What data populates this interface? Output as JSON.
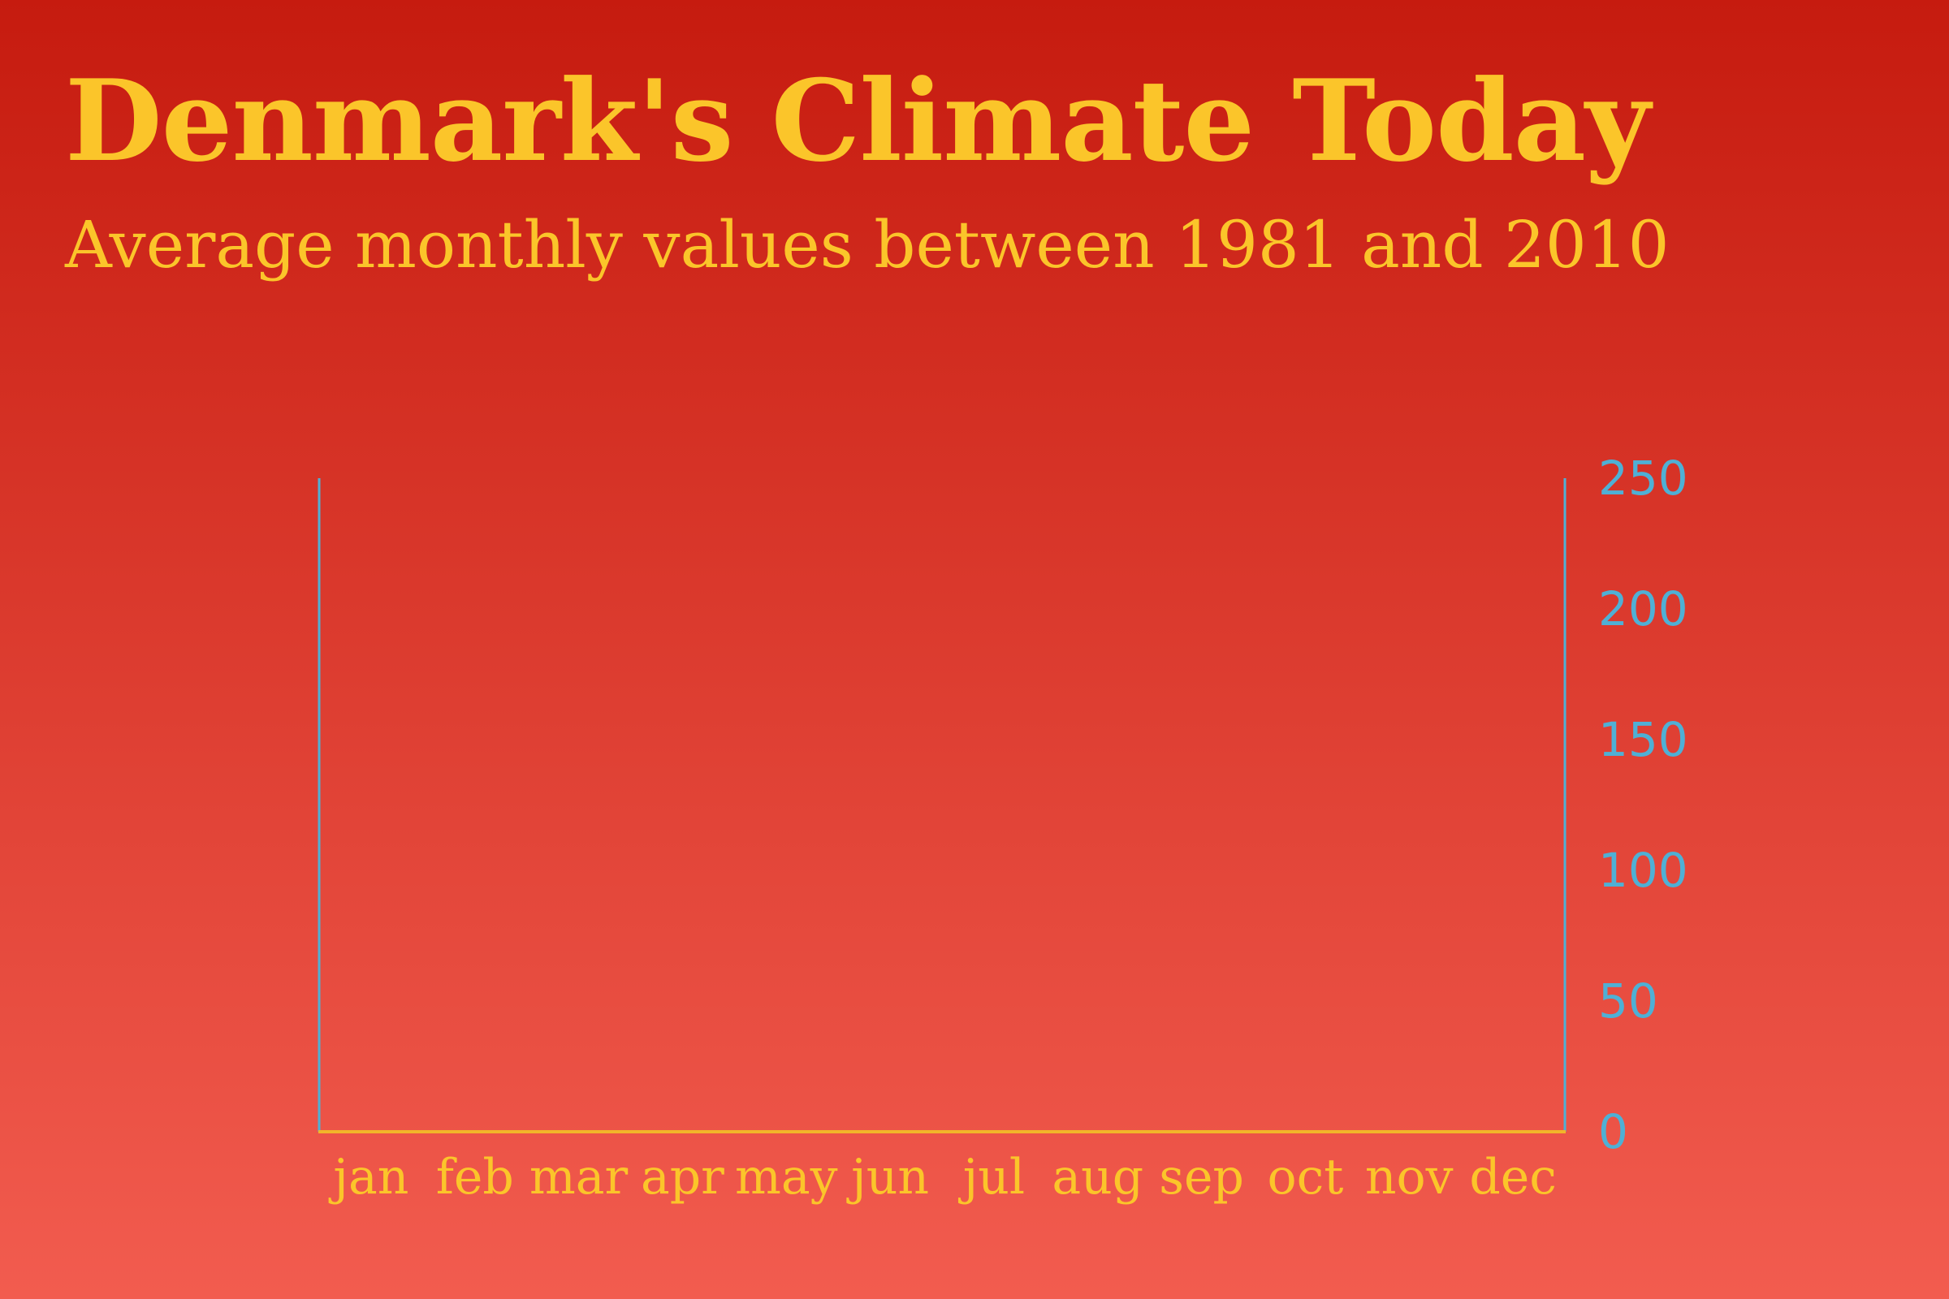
{
  "title": "Denmark's Climate Today",
  "subtitle": "Average monthly values between 1981 and 2010",
  "colors": {
    "background_top": "#c61b0f",
    "background_bottom": "#f25c4f",
    "title": "#fbc52a",
    "right_axis": "#4fb0d5",
    "baseline": "#f2b52a",
    "category_labels": "#fbc52a"
  },
  "chart_data": {
    "type": "bar",
    "categories": [
      "jan",
      "feb",
      "mar",
      "apr",
      "may",
      "jun",
      "jul",
      "aug",
      "sep",
      "oct",
      "nov",
      "dec"
    ],
    "series": [],
    "yaxis": {
      "side": "right",
      "ticks": [
        0,
        50,
        100,
        150,
        200,
        250
      ],
      "tick_labels": [
        "0",
        "50",
        "100",
        "150",
        "200",
        "250"
      ],
      "ylim": [
        0,
        250
      ]
    },
    "grid": false,
    "legend": "none"
  }
}
